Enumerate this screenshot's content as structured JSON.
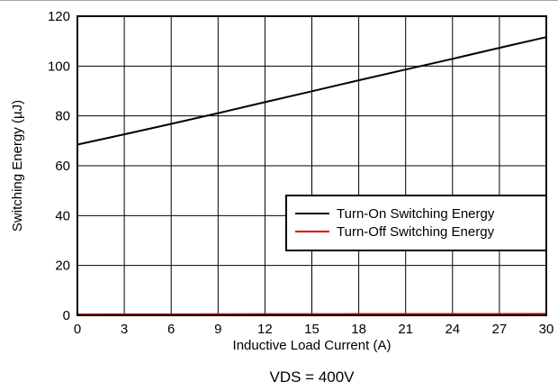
{
  "chart_data": {
    "type": "line",
    "title": "",
    "xlabel": "Inductive Load Current (A)",
    "ylabel": "Switching Energy (µJ)",
    "xlim": [
      0,
      30
    ],
    "ylim": [
      0,
      120
    ],
    "xticks": [
      0,
      3,
      6,
      9,
      12,
      15,
      18,
      21,
      24,
      27,
      30
    ],
    "yticks": [
      0,
      20,
      40,
      60,
      80,
      100,
      120
    ],
    "grid": true,
    "legend_position": "center-right",
    "series": [
      {
        "name": "Turn-On Switching Energy",
        "color": "#000000",
        "x": [
          0,
          3,
          6,
          9,
          12,
          15,
          18,
          21,
          24,
          27,
          30
        ],
        "y": [
          68.5,
          72.6,
          76.8,
          81.1,
          85.5,
          89.9,
          94.3,
          98.6,
          102.9,
          107.3,
          111.6
        ]
      },
      {
        "name": "Turn-Off Switching Energy",
        "color": "#e00000",
        "x": [
          0,
          3,
          6,
          9,
          12,
          15,
          18,
          21,
          24,
          27,
          30
        ],
        "y": [
          0.3,
          0.32,
          0.34,
          0.36,
          0.38,
          0.4,
          0.42,
          0.44,
          0.46,
          0.48,
          0.5
        ]
      }
    ],
    "annotation": "VDS = 400V"
  }
}
